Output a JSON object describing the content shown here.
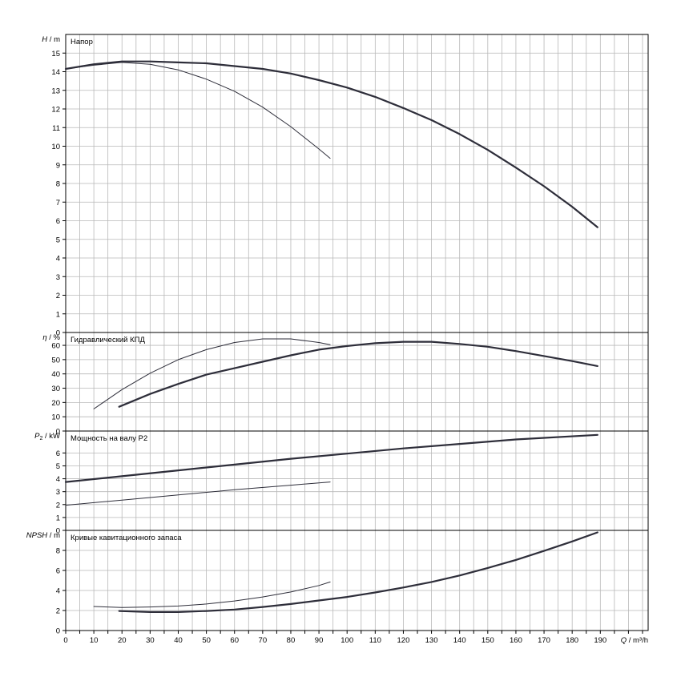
{
  "chart_data": {
    "type": "line",
    "x_label": "Q / m³/h",
    "x_ticks": [
      0,
      10,
      20,
      30,
      40,
      50,
      60,
      70,
      80,
      90,
      100,
      110,
      120,
      130,
      140,
      150,
      160,
      170,
      180,
      190
    ],
    "xlim": [
      0,
      207
    ],
    "colors": {
      "grid": "#b8b8b8",
      "frame": "#000000",
      "curve": "#2e2e3a"
    },
    "panels": [
      {
        "key": "head",
        "title": "Напор",
        "ylabel_var": "H",
        "ylabel_unit": " / m",
        "ylim": [
          0,
          16
        ],
        "y_ticks": [
          0,
          1,
          2,
          3,
          4,
          5,
          6,
          7,
          8,
          9,
          10,
          11,
          12,
          13,
          14,
          15
        ],
        "series": [
          {
            "points": [
              [
                0,
                14.15
              ],
              [
                10,
                14.4
              ],
              [
                20,
                14.55
              ],
              [
                30,
                14.55
              ],
              [
                40,
                14.5
              ],
              [
                50,
                14.45
              ],
              [
                60,
                14.3
              ],
              [
                70,
                14.15
              ],
              [
                80,
                13.9
              ],
              [
                90,
                13.55
              ],
              [
                100,
                13.15
              ],
              [
                110,
                12.65
              ],
              [
                120,
                12.05
              ],
              [
                130,
                11.4
              ],
              [
                140,
                10.65
              ],
              [
                150,
                9.8
              ],
              [
                160,
                8.85
              ],
              [
                170,
                7.85
              ],
              [
                180,
                6.75
              ],
              [
                189,
                5.65
              ]
            ]
          },
          {
            "points": [
              [
                0,
                14.15
              ],
              [
                10,
                14.35
              ],
              [
                20,
                14.5
              ],
              [
                30,
                14.4
              ],
              [
                40,
                14.1
              ],
              [
                50,
                13.6
              ],
              [
                60,
                12.95
              ],
              [
                70,
                12.1
              ],
              [
                80,
                11.05
              ],
              [
                90,
                9.85
              ],
              [
                94,
                9.35
              ]
            ]
          }
        ]
      },
      {
        "key": "eta",
        "title": "Гидравлический КПД",
        "ylabel_var": "η",
        "ylabel_unit": " / %",
        "ylim": [
          0,
          69
        ],
        "y_ticks": [
          0,
          10,
          20,
          30,
          40,
          50,
          60
        ],
        "series": [
          {
            "points": [
              [
                19,
                17
              ],
              [
                30,
                26
              ],
              [
                40,
                33
              ],
              [
                50,
                39.5
              ],
              [
                60,
                44
              ],
              [
                70,
                48.5
              ],
              [
                80,
                53
              ],
              [
                90,
                57
              ],
              [
                100,
                59.5
              ],
              [
                110,
                61.5
              ],
              [
                120,
                62.5
              ],
              [
                130,
                62.5
              ],
              [
                140,
                61
              ],
              [
                150,
                59
              ],
              [
                160,
                56
              ],
              [
                170,
                52.5
              ],
              [
                180,
                49
              ],
              [
                189,
                45.5
              ]
            ]
          },
          {
            "points": [
              [
                10,
                15.5
              ],
              [
                20,
                29
              ],
              [
                30,
                40.5
              ],
              [
                40,
                50
              ],
              [
                50,
                57
              ],
              [
                60,
                62
              ],
              [
                70,
                64.5
              ],
              [
                80,
                64.5
              ],
              [
                90,
                62
              ],
              [
                94,
                60.5
              ]
            ]
          }
        ]
      },
      {
        "key": "power",
        "title": "Мощность на валу P2",
        "ylabel_var": "P",
        "ylabel_sub": "2",
        "ylabel_unit": " / kW",
        "ylim": [
          0,
          7.7
        ],
        "y_ticks": [
          0,
          1,
          2,
          3,
          4,
          5,
          6
        ],
        "series": [
          {
            "points": [
              [
                0,
                3.75
              ],
              [
                20,
                4.2
              ],
              [
                40,
                4.65
              ],
              [
                60,
                5.1
              ],
              [
                80,
                5.55
              ],
              [
                100,
                5.95
              ],
              [
                120,
                6.35
              ],
              [
                140,
                6.7
              ],
              [
                160,
                7.05
              ],
              [
                189,
                7.4
              ]
            ]
          },
          {
            "points": [
              [
                0,
                1.95
              ],
              [
                20,
                2.35
              ],
              [
                40,
                2.75
              ],
              [
                60,
                3.15
              ],
              [
                80,
                3.5
              ],
              [
                94,
                3.75
              ]
            ]
          }
        ]
      },
      {
        "key": "npsh",
        "title": "Кривые кавитационного запаса",
        "ylabel_var": "NPSH",
        "ylabel_unit": " / m",
        "ylim": [
          0,
          10
        ],
        "y_ticks": [
          0,
          2,
          4,
          6,
          8
        ],
        "series": [
          {
            "points": [
              [
                19,
                1.95
              ],
              [
                30,
                1.85
              ],
              [
                40,
                1.85
              ],
              [
                50,
                1.95
              ],
              [
                60,
                2.1
              ],
              [
                70,
                2.35
              ],
              [
                80,
                2.65
              ],
              [
                90,
                3.0
              ],
              [
                100,
                3.35
              ],
              [
                110,
                3.8
              ],
              [
                120,
                4.3
              ],
              [
                130,
                4.85
              ],
              [
                140,
                5.5
              ],
              [
                150,
                6.25
              ],
              [
                160,
                7.05
              ],
              [
                170,
                7.95
              ],
              [
                180,
                8.9
              ],
              [
                189,
                9.8
              ]
            ]
          },
          {
            "points": [
              [
                10,
                2.4
              ],
              [
                20,
                2.3
              ],
              [
                30,
                2.35
              ],
              [
                40,
                2.45
              ],
              [
                50,
                2.65
              ],
              [
                60,
                2.95
              ],
              [
                70,
                3.35
              ],
              [
                80,
                3.85
              ],
              [
                90,
                4.5
              ],
              [
                94,
                4.85
              ]
            ]
          }
        ]
      }
    ]
  }
}
